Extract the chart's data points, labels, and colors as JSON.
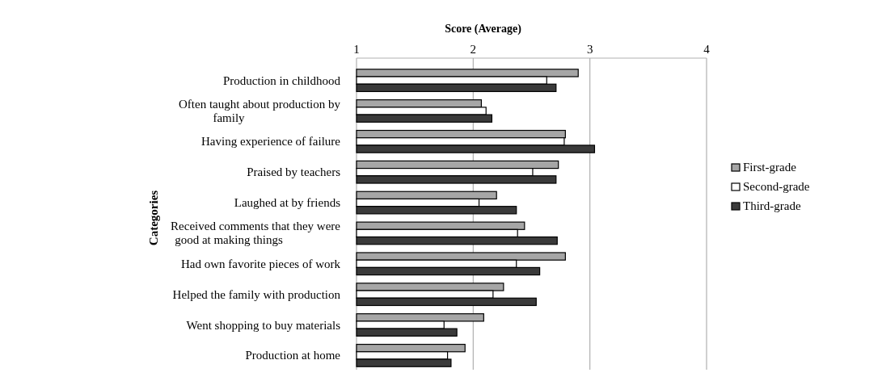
{
  "chart_data": {
    "type": "bar",
    "orientation": "horizontal",
    "xlabel": "Score (Average)",
    "ylabel": "Categories",
    "categories": [
      "Production in childhood",
      "Often taught about production by family",
      "Having experience of failure",
      "Praised by teachers",
      "Laughed at by friends",
      "Received comments that they were good at making things",
      "Had own favorite pieces of work",
      "Helped the family with production",
      "Went shopping to buy materials",
      "Production at home"
    ],
    "series": [
      {
        "name": "First-grade",
        "color": "#a6a6a6",
        "values": [
          2.9,
          2.07,
          2.79,
          2.73,
          2.2,
          2.44,
          2.79,
          2.26,
          2.09,
          1.93
        ]
      },
      {
        "name": "Second-grade",
        "color": "#ffffff",
        "values": [
          2.63,
          2.11,
          2.78,
          2.51,
          2.05,
          2.38,
          2.37,
          2.17,
          1.75,
          1.78
        ]
      },
      {
        "name": "Third-grade",
        "color": "#3a3a3a",
        "values": [
          2.71,
          2.16,
          3.04,
          2.71,
          2.37,
          2.72,
          2.57,
          2.54,
          1.86,
          1.81
        ]
      }
    ],
    "xlim": [
      1,
      4
    ],
    "xticks": [
      1,
      2,
      3,
      4
    ],
    "grid": "x",
    "legend": "right"
  }
}
